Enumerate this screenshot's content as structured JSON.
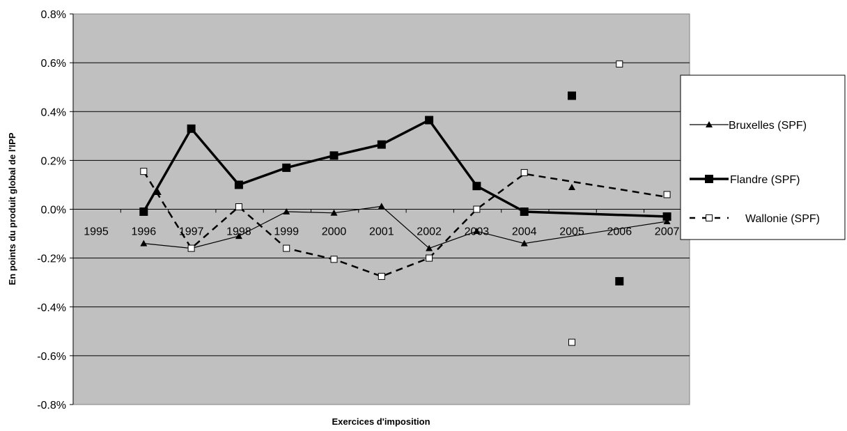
{
  "chart_data": {
    "type": "line",
    "title": "",
    "xlabel": "Exercices d'imposition",
    "ylabel": "En points du produit global de l'IPP",
    "categories": [
      "1995",
      "1996",
      "1997",
      "1998",
      "1999",
      "2000",
      "2001",
      "2002",
      "2003",
      "2004",
      "2005",
      "2006",
      "2007"
    ],
    "ylim": [
      -0.8,
      0.8
    ],
    "yticks": [
      "0.8%",
      "0.6%",
      "0.4%",
      "0.2%",
      "0.0%",
      "-0.2%",
      "-0.4%",
      "-0.6%",
      "-0.8%"
    ],
    "yticks_values": [
      0.8,
      0.6,
      0.4,
      0.2,
      0.0,
      -0.2,
      -0.4,
      -0.6,
      -0.8
    ],
    "grid": true,
    "legend_position": "right",
    "plot_background": "#c0c0c0",
    "series": [
      {
        "name": "Bruxelles (SPF)",
        "style": "thin-solid",
        "marker": "triangle",
        "color": "#000000",
        "line": [
          [
            1996,
            -0.14
          ],
          [
            1997,
            -0.16
          ],
          [
            1998,
            -0.11
          ],
          [
            1999,
            -0.01
          ],
          [
            2000,
            -0.015
          ],
          [
            2001,
            0.012
          ],
          [
            2002,
            -0.16
          ],
          [
            2003,
            -0.09
          ],
          [
            2004,
            -0.14
          ],
          [
            2007,
            -0.05
          ]
        ],
        "markers": [
          [
            1996,
            -0.14
          ],
          [
            1996.3,
            0.07
          ],
          [
            1997,
            -0.16
          ],
          [
            1998,
            -0.11
          ],
          [
            1999,
            -0.01
          ],
          [
            2000,
            -0.015
          ],
          [
            2001,
            0.012
          ],
          [
            2002,
            -0.16
          ],
          [
            2003,
            -0.09
          ],
          [
            2004,
            -0.14
          ],
          [
            2005,
            0.09
          ],
          [
            2007,
            -0.05
          ]
        ]
      },
      {
        "name": "Flandre (SPF)",
        "style": "thick-solid",
        "marker": "square-filled",
        "color": "#000000",
        "line": [
          [
            1996,
            -0.01
          ],
          [
            1997,
            0.33
          ],
          [
            1998,
            0.1
          ],
          [
            1999,
            0.17
          ],
          [
            2000,
            0.22
          ],
          [
            2001,
            0.265
          ],
          [
            2002,
            0.365
          ],
          [
            2003,
            0.095
          ],
          [
            2004,
            -0.01
          ],
          [
            2007,
            -0.03
          ]
        ],
        "markers": [
          [
            1996,
            -0.01
          ],
          [
            1997,
            0.33
          ],
          [
            1998,
            0.1
          ],
          [
            1999,
            0.17
          ],
          [
            2000,
            0.22
          ],
          [
            2001,
            0.265
          ],
          [
            2002,
            0.365
          ],
          [
            2003,
            0.095
          ],
          [
            2004,
            -0.01
          ],
          [
            2005,
            0.465
          ],
          [
            2006,
            -0.295
          ],
          [
            2007,
            -0.03
          ]
        ]
      },
      {
        "name": "Wallonie (SPF)",
        "style": "dashed",
        "marker": "square-open",
        "color": "#000000",
        "line": [
          [
            1996,
            0.155
          ],
          [
            1997,
            -0.16
          ],
          [
            1998,
            0.01
          ],
          [
            1999,
            -0.16
          ],
          [
            2000,
            -0.205
          ],
          [
            2001,
            -0.275
          ],
          [
            2002,
            -0.2
          ],
          [
            2003,
            0.0
          ],
          [
            2004,
            0.145
          ],
          [
            2007,
            0.05
          ]
        ],
        "markers": [
          [
            1996,
            0.155
          ],
          [
            1997,
            -0.16
          ],
          [
            1998,
            0.01
          ],
          [
            1999,
            -0.16
          ],
          [
            2000,
            -0.205
          ],
          [
            2001,
            -0.275
          ],
          [
            2002,
            -0.2
          ],
          [
            2003,
            0.0
          ],
          [
            2004,
            0.15
          ],
          [
            2005,
            -0.545
          ],
          [
            2006,
            0.595
          ],
          [
            2007,
            0.06
          ]
        ]
      }
    ]
  }
}
